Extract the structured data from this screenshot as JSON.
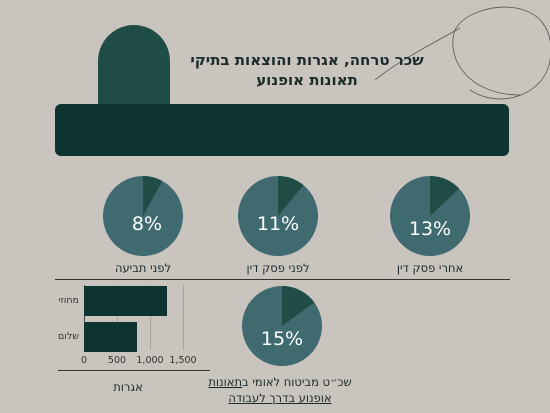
{
  "title": {
    "line1": "שכר טרחה, אגרות והוצאות בתיקי",
    "line2": "תאונות אופנוע"
  },
  "fees": [
    {
      "label": "לפני תביעה",
      "percent_text": "8%",
      "value": 8
    },
    {
      "label": "לפני פסק דין",
      "percent_text": "11%",
      "value": 11
    },
    {
      "label": "אחרי פסק דין",
      "percent_text": "13%",
      "value": 13
    }
  ],
  "nii": {
    "percent_text": "15%",
    "value": 15,
    "text_before": "שכ״ט מביטוח לאומי ב",
    "text_underlined": "תאונות",
    "text_line2": "אופנוע בדרך לעבודה"
  },
  "chart_data": {
    "type": "bar",
    "orientation": "horizontal",
    "categories": [
      "מחוזי",
      "שלום"
    ],
    "values": [
      1260,
      800
    ],
    "xticks": [
      "0",
      "500",
      "1,000",
      "1,500"
    ],
    "xlim": [
      0,
      1500
    ],
    "xlabel": "אגרות",
    "grid": true
  },
  "colors": {
    "background": "#c9c4be",
    "dark_teal": "#0d3430",
    "pie_main": "#3f6a70",
    "pie_slice": "#1f4d46"
  }
}
